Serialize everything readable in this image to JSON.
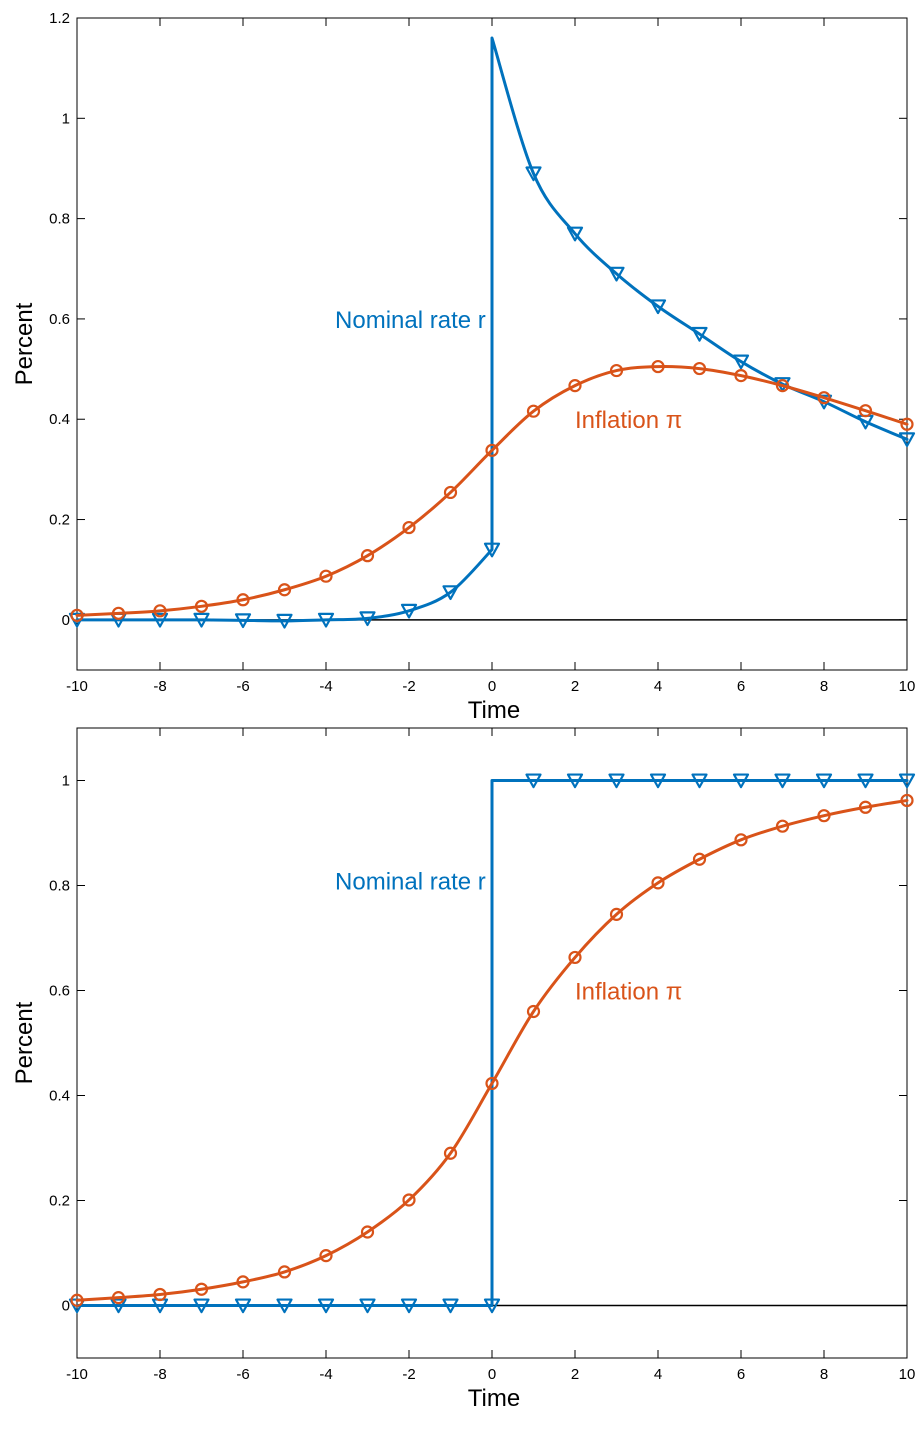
{
  "colors": {
    "nominal": "#0072BD",
    "inflation": "#D95319",
    "axis": "#000000",
    "zero_line": "#000000"
  },
  "chart_data": [
    {
      "type": "line",
      "xlabel": "Time",
      "ylabel": "Percent",
      "xlim": [
        -10,
        10
      ],
      "ylim": [
        -0.1,
        1.2
      ],
      "xticks": [
        -10,
        -8,
        -6,
        -4,
        -2,
        0,
        2,
        4,
        6,
        8,
        10
      ],
      "xtick_labels": [
        "-10",
        "-8",
        "-6",
        "-4",
        "-2",
        "0",
        "2",
        "4",
        "6",
        "8",
        "10"
      ],
      "yticks": [
        0,
        0.2,
        0.4,
        0.6,
        0.8,
        1,
        1.2
      ],
      "ytick_labels": [
        "0",
        "0.2",
        "0.4",
        "0.6",
        "0.8",
        "1",
        "1.2"
      ],
      "zero_line": true,
      "grid": false,
      "annotations": [
        {
          "text": "Nominal rate r",
          "x": -0.15,
          "y": 0.6,
          "anchor": "end",
          "series": "nominal"
        },
        {
          "text": "Inflation π",
          "x": 2.0,
          "y": 0.4,
          "anchor": "start",
          "series": "inflation"
        }
      ],
      "series": [
        {
          "key": "nominal",
          "marker": "triangle-down",
          "x": [
            -10,
            -9,
            -8,
            -7,
            -6,
            -5,
            -4,
            -3,
            -2,
            -1,
            0,
            0,
            1,
            2,
            3,
            4,
            5,
            6,
            7,
            8,
            9,
            10
          ],
          "y": [
            0,
            0,
            0,
            0,
            -0.001,
            -0.002,
            0,
            0.003,
            0.018,
            0.055,
            0.14,
            1.16,
            0.89,
            0.77,
            0.69,
            0.625,
            0.57,
            0.515,
            0.47,
            0.435,
            0.395,
            0.36
          ],
          "marker_x": [
            -10,
            -9,
            -8,
            -7,
            -6,
            -5,
            -4,
            -3,
            -2,
            -1,
            0,
            1,
            2,
            3,
            4,
            5,
            6,
            7,
            8,
            9,
            10
          ],
          "marker_y": [
            0,
            0,
            0,
            0,
            -0.001,
            -0.002,
            0,
            0.003,
            0.018,
            0.055,
            0.14,
            0.89,
            0.77,
            0.69,
            0.625,
            0.57,
            0.515,
            0.47,
            0.435,
            0.395,
            0.36
          ]
        },
        {
          "key": "inflation",
          "marker": "circle",
          "x": [
            -10,
            -9,
            -8,
            -7,
            -6,
            -5,
            -4,
            -3,
            -2,
            -1,
            0,
            1,
            2,
            3,
            4,
            5,
            6,
            7,
            8,
            9,
            10
          ],
          "y": [
            0.009,
            0.013,
            0.018,
            0.027,
            0.04,
            0.06,
            0.087,
            0.128,
            0.184,
            0.254,
            0.338,
            0.416,
            0.467,
            0.497,
            0.505,
            0.501,
            0.487,
            0.467,
            0.443,
            0.417,
            0.39
          ],
          "marker_x": [
            -10,
            -9,
            -8,
            -7,
            -6,
            -5,
            -4,
            -3,
            -2,
            -1,
            0,
            1,
            2,
            3,
            4,
            5,
            6,
            7,
            8,
            9,
            10
          ],
          "marker_y": [
            0.009,
            0.013,
            0.018,
            0.027,
            0.04,
            0.06,
            0.087,
            0.128,
            0.184,
            0.254,
            0.338,
            0.416,
            0.467,
            0.497,
            0.505,
            0.501,
            0.487,
            0.467,
            0.443,
            0.417,
            0.39
          ]
        }
      ]
    },
    {
      "type": "line",
      "xlabel": "Time",
      "ylabel": "Percent",
      "xlim": [
        -10,
        10
      ],
      "ylim": [
        -0.1,
        1.1
      ],
      "xticks": [
        -10,
        -8,
        -6,
        -4,
        -2,
        0,
        2,
        4,
        6,
        8,
        10
      ],
      "xtick_labels": [
        "-10",
        "-8",
        "-6",
        "-4",
        "-2",
        "0",
        "2",
        "4",
        "6",
        "8",
        "10"
      ],
      "yticks": [
        0,
        0.2,
        0.4,
        0.6,
        0.8,
        1
      ],
      "ytick_labels": [
        "0",
        "0.2",
        "0.4",
        "0.6",
        "0.8",
        "1"
      ],
      "zero_line": true,
      "grid": false,
      "annotations": [
        {
          "text": "Nominal rate r",
          "x": -0.15,
          "y": 0.81,
          "anchor": "end",
          "series": "nominal"
        },
        {
          "text": "Inflation π",
          "x": 2.0,
          "y": 0.6,
          "anchor": "start",
          "series": "inflation"
        }
      ],
      "series": [
        {
          "key": "nominal",
          "marker": "triangle-down",
          "x": [
            -10,
            -9,
            -8,
            -7,
            -6,
            -5,
            -4,
            -3,
            -2,
            -1,
            0,
            0,
            1,
            2,
            3,
            4,
            5,
            6,
            7,
            8,
            9,
            10
          ],
          "y": [
            0,
            0,
            0,
            0,
            0,
            0,
            0,
            0,
            0,
            0,
            0,
            1,
            1,
            1,
            1,
            1,
            1,
            1,
            1,
            1,
            1,
            1
          ],
          "marker_x": [
            -10,
            -9,
            -8,
            -7,
            -6,
            -5,
            -4,
            -3,
            -2,
            -1,
            0,
            1,
            2,
            3,
            4,
            5,
            6,
            7,
            8,
            9,
            10
          ],
          "marker_y": [
            0,
            0,
            0,
            0,
            0,
            0,
            0,
            0,
            0,
            0,
            0,
            1,
            1,
            1,
            1,
            1,
            1,
            1,
            1,
            1,
            1
          ]
        },
        {
          "key": "inflation",
          "marker": "circle",
          "x": [
            -10,
            -9,
            -8,
            -7,
            -6,
            -5,
            -4,
            -3,
            -2,
            -1,
            0,
            1,
            2,
            3,
            4,
            5,
            6,
            7,
            8,
            9,
            10
          ],
          "y": [
            0.01,
            0.015,
            0.021,
            0.031,
            0.045,
            0.064,
            0.095,
            0.14,
            0.201,
            0.29,
            0.423,
            0.56,
            0.663,
            0.745,
            0.805,
            0.85,
            0.887,
            0.913,
            0.933,
            0.949,
            0.962
          ],
          "marker_x": [
            -10,
            -9,
            -8,
            -7,
            -6,
            -5,
            -4,
            -3,
            -2,
            -1,
            0,
            1,
            2,
            3,
            4,
            5,
            6,
            7,
            8,
            9,
            10
          ],
          "marker_y": [
            0.01,
            0.015,
            0.021,
            0.031,
            0.045,
            0.064,
            0.095,
            0.14,
            0.201,
            0.29,
            0.423,
            0.56,
            0.663,
            0.745,
            0.805,
            0.85,
            0.887,
            0.913,
            0.933,
            0.949,
            0.962
          ]
        }
      ]
    }
  ]
}
